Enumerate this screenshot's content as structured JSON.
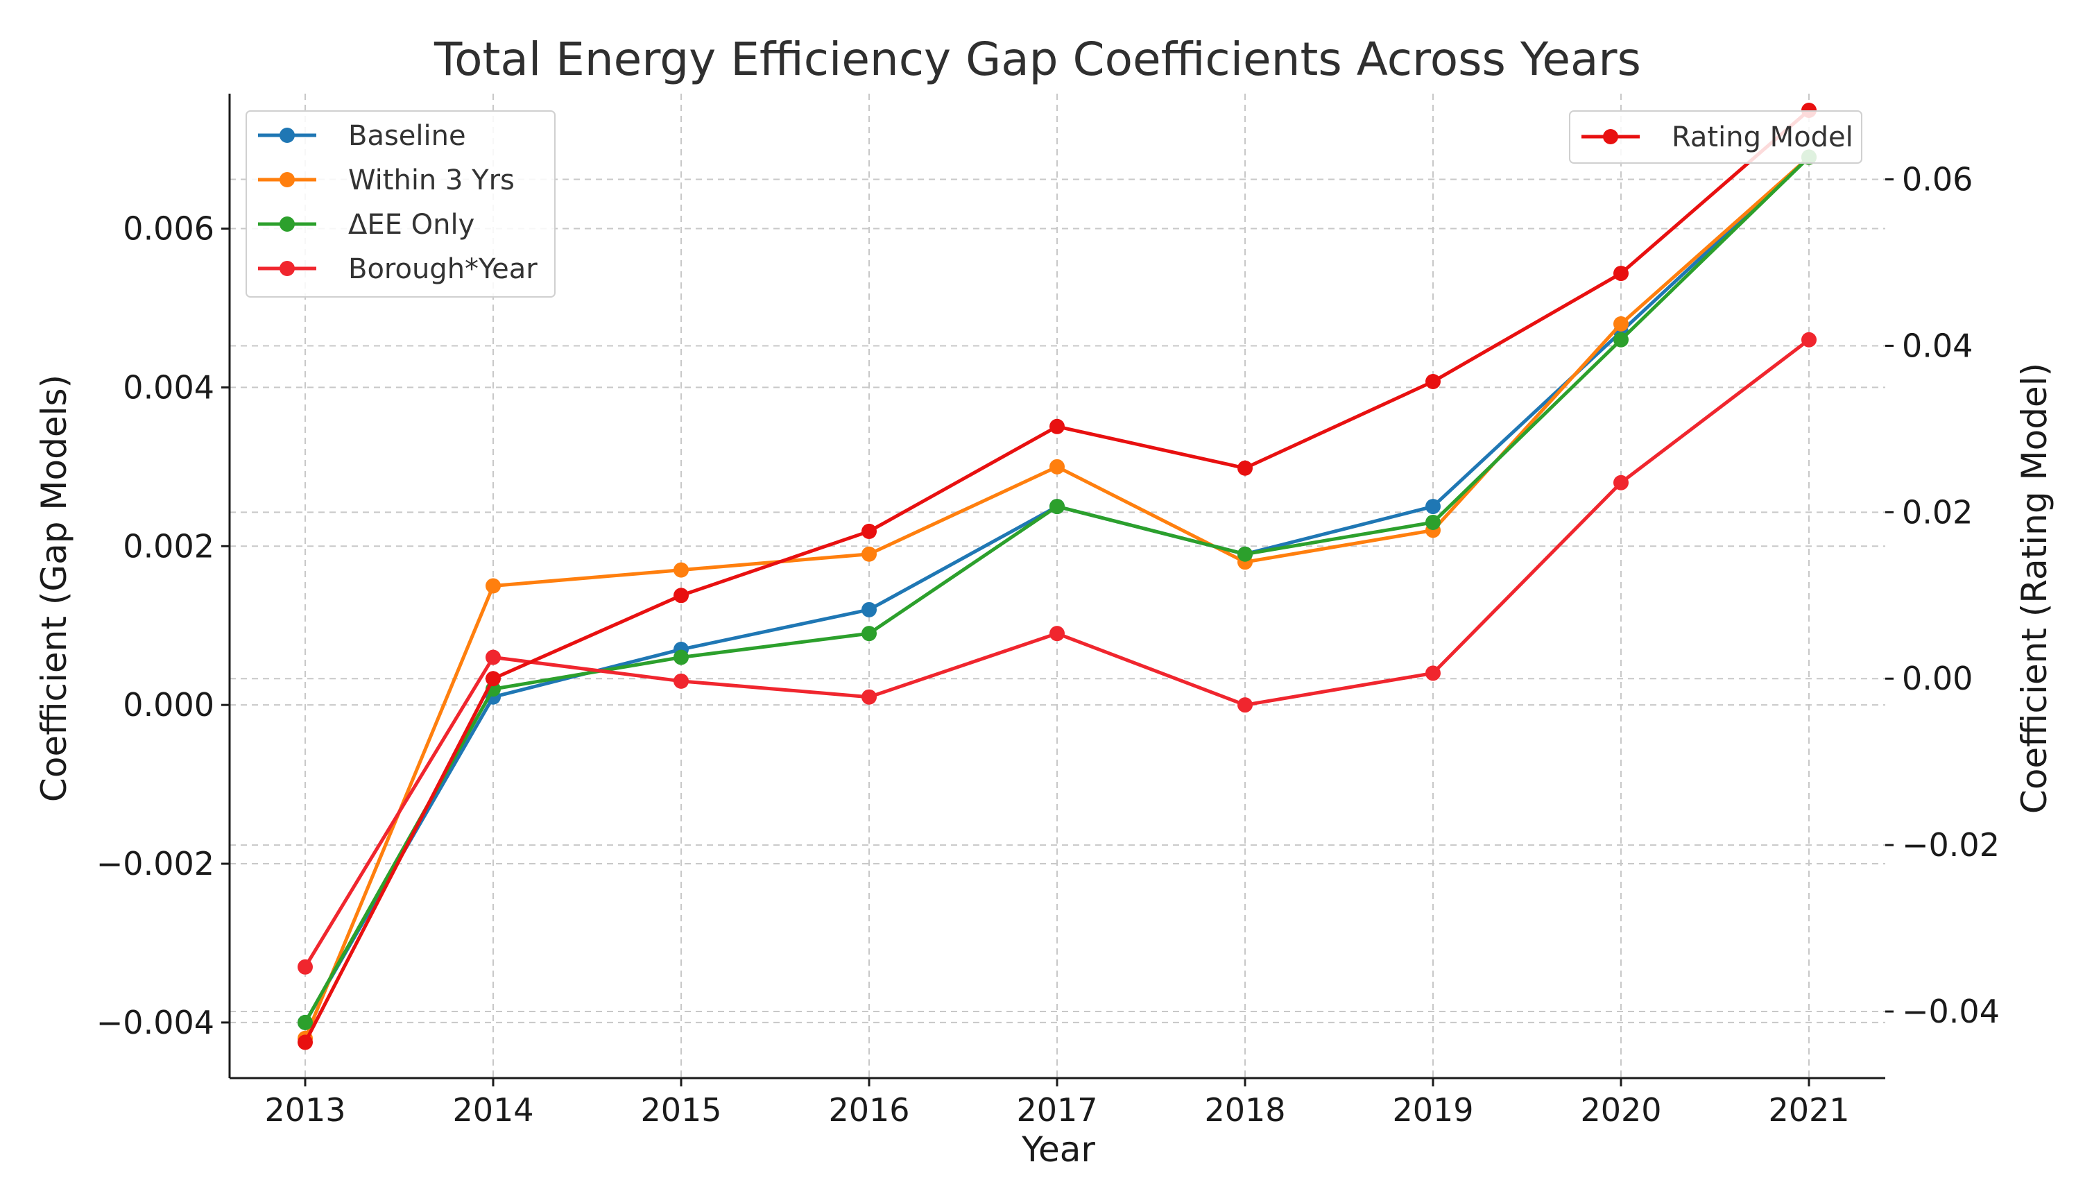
{
  "chart_data": {
    "type": "line",
    "title": "Total Energy Efficiency Gap Coefficients Across Years",
    "xlabel": "Year",
    "ylabel": "Coefficient (Gap Models)",
    "ylabel_right": "Coefficient (Rating Model)",
    "x": [
      2013,
      2014,
      2015,
      2016,
      2017,
      2018,
      2019,
      2020,
      2021
    ],
    "x_tick_labels": [
      "2013",
      "2014",
      "2015",
      "2016",
      "2017",
      "2018",
      "2019",
      "2020",
      "2021"
    ],
    "ylim": [
      -0.0047,
      0.0077
    ],
    "ylim_right": [
      -0.048,
      0.0703
    ],
    "y_ticks": [
      -0.004,
      -0.002,
      0.0,
      0.002,
      0.004,
      0.006
    ],
    "y_tick_labels": [
      "−0.004",
      "−0.002",
      "0.000",
      "0.002",
      "0.004",
      "0.006"
    ],
    "y_ticks_right": [
      -0.04,
      -0.02,
      0.0,
      0.02,
      0.04,
      0.06
    ],
    "y_tick_labels_right": [
      "−0.04",
      "−0.02",
      "0.00",
      "0.02",
      "0.04",
      "0.06"
    ],
    "grid": true,
    "series": [
      {
        "name": "Baseline",
        "axis": "left",
        "color": "#1f77b4",
        "values": [
          -0.004,
          0.0001,
          0.0007,
          0.0012,
          0.0025,
          0.0019,
          0.0025,
          0.0047,
          0.0069
        ]
      },
      {
        "name": "Within 3 Yrs",
        "axis": "left",
        "color": "#ff7f0e",
        "values": [
          -0.0042,
          0.0015,
          0.0017,
          0.0019,
          0.003,
          0.0018,
          0.0022,
          0.0048,
          0.0069
        ]
      },
      {
        "name": "ΔEE Only",
        "axis": "left",
        "color": "#2ca02c",
        "values": [
          -0.004,
          0.0002,
          0.0006,
          0.0009,
          0.0025,
          0.0019,
          0.0023,
          0.0046,
          0.0069
        ]
      },
      {
        "name": "Borough*Year",
        "axis": "left",
        "color": "#f0262e",
        "values": [
          -0.0033,
          0.0006,
          0.0003,
          0.0001,
          0.0009,
          0.0,
          0.0004,
          0.0028,
          0.0046
        ]
      },
      {
        "name": "Rating Model",
        "axis": "right",
        "color": "#e81010",
        "values": [
          -0.0437,
          0.0,
          0.01,
          0.0177,
          0.0303,
          0.0253,
          0.0357,
          0.0487,
          0.0683
        ]
      }
    ],
    "legend_left": [
      "Baseline",
      "Within 3 Yrs",
      "ΔEE Only",
      "Borough*Year"
    ],
    "legend_right": [
      "Rating Model"
    ],
    "legend_placement": [
      "upper-left",
      "upper-right"
    ]
  }
}
